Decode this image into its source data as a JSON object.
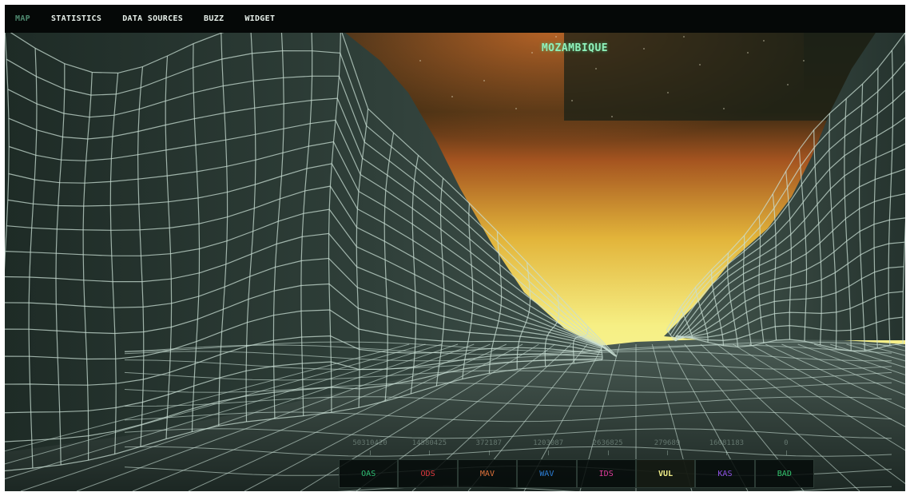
{
  "nav": {
    "items": [
      {
        "label": "MAP",
        "active": true
      },
      {
        "label": "STATISTICS",
        "active": false
      },
      {
        "label": "DATA SOURCES",
        "active": false
      },
      {
        "label": "BUZZ",
        "active": false
      },
      {
        "label": "WIDGET",
        "active": false
      }
    ]
  },
  "country": "MOZAMBIQUE",
  "scale": {
    "values": [
      "50310420",
      "14580425",
      "372187",
      "1203087",
      "2636825",
      "279689",
      "16081183",
      "0"
    ]
  },
  "legend": {
    "items": [
      {
        "label": "OAS",
        "color": "#2fbf74",
        "active": false
      },
      {
        "label": "ODS",
        "color": "#e0393e",
        "active": false
      },
      {
        "label": "MAV",
        "color": "#e0723a",
        "active": false
      },
      {
        "label": "WAV",
        "color": "#2c7fd8",
        "active": false
      },
      {
        "label": "IDS",
        "color": "#e03c9c",
        "active": false
      },
      {
        "label": "VUL",
        "color": "#f2ef8a",
        "active": true
      },
      {
        "label": "KAS",
        "color": "#8f52e6",
        "active": false
      },
      {
        "label": "BAD",
        "color": "#33c46e",
        "active": false
      }
    ]
  }
}
